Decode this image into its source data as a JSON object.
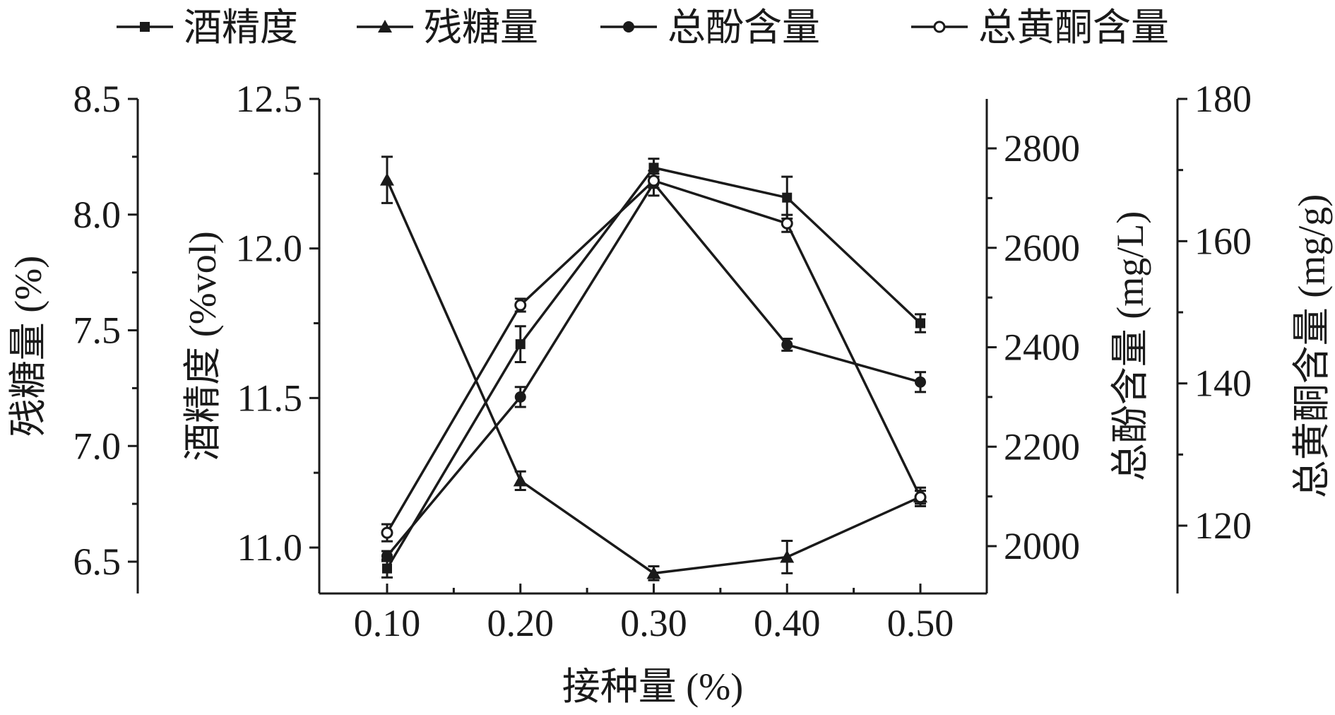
{
  "chart_data": {
    "type": "line",
    "title": "",
    "x": [
      0.1,
      0.2,
      0.3,
      0.4,
      0.5
    ],
    "x_tick_labels": [
      "0.10",
      "0.20",
      "0.30",
      "0.40",
      "0.50"
    ],
    "xlabel": "接种量 (%)",
    "xlim": [
      0.045,
      0.545
    ],
    "grid": false,
    "legend_position": "top",
    "axes": {
      "residual_sugar": {
        "label": "残糖量 (%)",
        "ylim": [
          6.2,
          8.5
        ],
        "ticks": [
          "6.5",
          "7.0",
          "7.5",
          "8.0",
          "8.5"
        ],
        "side": "left-outer"
      },
      "alcohol": {
        "label": "酒精度 (%vol)",
        "ylim": [
          10.7,
          12.5
        ],
        "ticks": [
          "11.0",
          "11.5",
          "12.0",
          "12.5"
        ],
        "side": "left-inner"
      },
      "phenol": {
        "label": "总酚含量 (mg/L)",
        "ylim": [
          1900,
          2900
        ],
        "ticks": [
          "2000",
          "2200",
          "2400",
          "2600",
          "2800"
        ],
        "side": "right-inner"
      },
      "flavonoid": {
        "label": "总黄酮含量 (mg/g)",
        "ylim": [
          110,
          180
        ],
        "ticks": [
          "120",
          "140",
          "160",
          "180"
        ],
        "side": "right-outer"
      }
    },
    "series": [
      {
        "name": "酒精度",
        "axis": "alcohol",
        "marker": "square",
        "values": [
          10.93,
          11.68,
          12.27,
          12.17,
          11.75
        ],
        "errors": [
          0.03,
          0.06,
          0.03,
          0.07,
          0.03
        ]
      },
      {
        "name": "残糖量",
        "axis": "residual_sugar",
        "marker": "triangle",
        "values": [
          8.15,
          6.85,
          6.45,
          6.52,
          6.78
        ],
        "errors": [
          0.1,
          0.04,
          0.03,
          0.07,
          0.04
        ]
      },
      {
        "name": "总酚含量",
        "axis": "phenol",
        "marker": "circle-filled",
        "values": [
          1980,
          2300,
          2730,
          2405,
          2330
        ],
        "errors": [
          10,
          20,
          25,
          12,
          20
        ]
      },
      {
        "name": "总黄酮含量",
        "axis": "flavonoid",
        "marker": "circle-open",
        "values": [
          119,
          151,
          168.5,
          162.5,
          124
        ],
        "errors": [
          1.2,
          0.9,
          1.0,
          1.2,
          0.9
        ]
      }
    ]
  }
}
